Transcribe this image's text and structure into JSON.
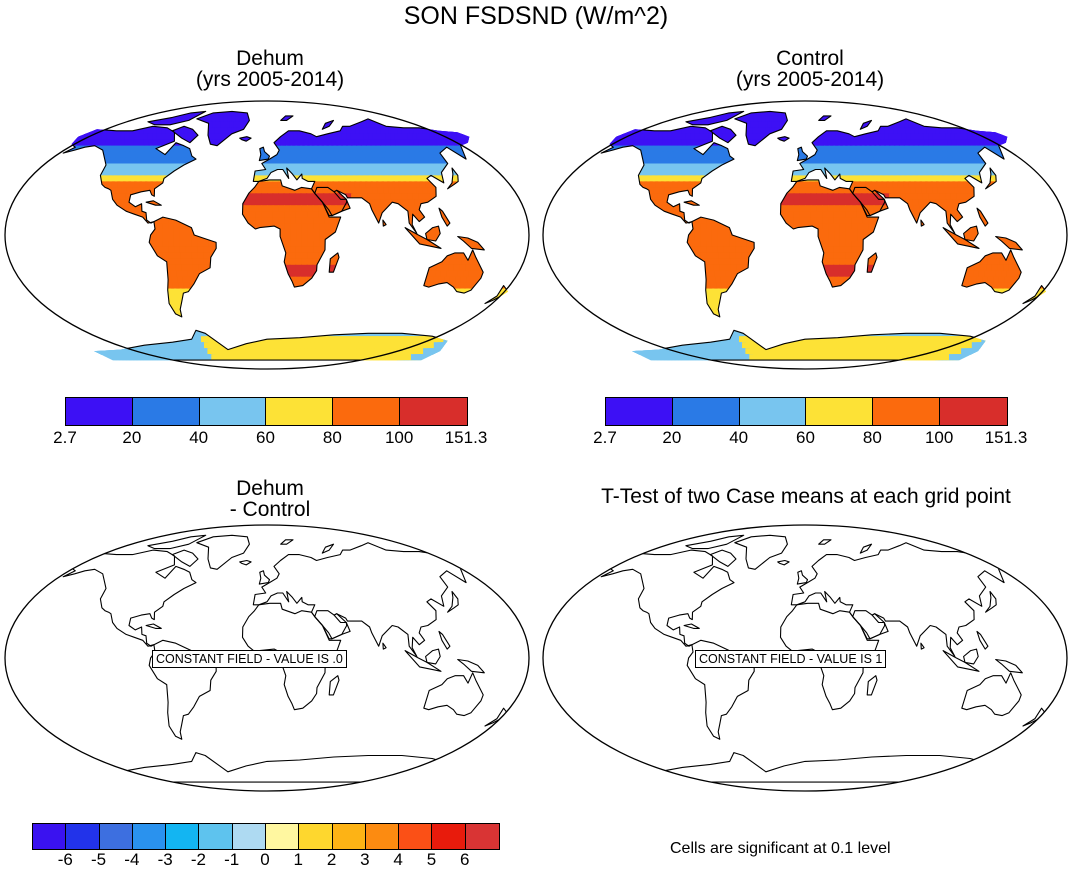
{
  "title": "SON FSDSND (W/m^2)",
  "panels": [
    {
      "title_line1": "Dehum",
      "title_line2": "(yrs 2005-2014)",
      "filled": true
    },
    {
      "title_line1": "Control",
      "title_line2": "(yrs 2005-2014)",
      "filled": true
    },
    {
      "title_line1": "Dehum",
      "title_line2": "- Control",
      "filled": false,
      "constant_label": "CONSTANT FIELD - VALUE IS .0"
    },
    {
      "title_line1": "T-Test of two Case means at each grid point",
      "title_line2": "",
      "filled": false,
      "constant_label": "CONSTANT FIELD - VALUE IS 1"
    }
  ],
  "colorbar_top": {
    "colors": [
      "#3d10f5",
      "#2a7ae6",
      "#78c5ef",
      "#fde236",
      "#fb6a0d",
      "#d82e2b"
    ],
    "labels": [
      "2.7",
      "20",
      "40",
      "60",
      "80",
      "100",
      "151.3"
    ]
  },
  "colorbar_diff": {
    "colors": [
      "#3a12f0",
      "#2233ea",
      "#3d6fe0",
      "#2a92ee",
      "#13b5f2",
      "#5ec3ee",
      "#aedaf2",
      "#fff7a0",
      "#fed72e",
      "#fdb315",
      "#fc8b11",
      "#fb5016",
      "#e81b0c",
      "#d93434"
    ],
    "labels": [
      "-6",
      "-5",
      "-4",
      "-3",
      "-2",
      "-1",
      "0",
      "1",
      "2",
      "3",
      "4",
      "5",
      "6"
    ]
  },
  "ttest_note": "Cells are significant at 0.1 level"
}
